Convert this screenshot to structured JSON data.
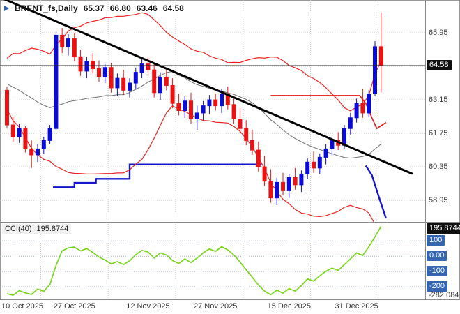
{
  "header": {
    "symbol": "BRENT_fs,Daily",
    "open": "65.37",
    "high": "66.80",
    "low": "63.46",
    "close": "64.58"
  },
  "colors": {
    "grid": "#c6c6c6",
    "axis_text": "#3b3b3b",
    "tag_black_bg": "#101010",
    "tag_text": "#ffffff",
    "border": "#8a8a8a",
    "bid_line": "#2a2a2a",
    "background": "#ffffff"
  },
  "chart_data": {
    "type": "candlestick",
    "title": "BRENT_fs,Daily",
    "symbol": "BRENT_fs",
    "timeframe": "Daily",
    "last_bar_ohlc": {
      "open": 65.37,
      "high": 66.8,
      "low": 63.46,
      "close": 64.58
    },
    "up_color": "#0b0bd8",
    "down_color": "#ea1212",
    "x_labels": [
      {
        "label": "10 Oct 2025",
        "index": 0
      },
      {
        "label": "27 Oct 2025",
        "index": 11
      },
      {
        "label": "12 Nov 2025",
        "index": 23
      },
      {
        "label": "27 Nov 2025",
        "index": 34
      },
      {
        "label": "15 Dec 2025",
        "index": 46
      },
      {
        "label": "31 Dec 2025",
        "index": 57
      }
    ],
    "vgrid_indices": [
      5.5,
      16.5,
      27.5,
      38.5,
      49.5,
      60.5
    ],
    "y_axis": {
      "price_max": 67.32,
      "price_min": 58.05,
      "ticks": [
        {
          "label": "65.95",
          "price": 65.95
        },
        {
          "label": "63.15",
          "price": 63.15
        },
        {
          "label": "61.75",
          "price": 61.75
        },
        {
          "label": "60.35",
          "price": 60.35
        },
        {
          "label": "58.95",
          "price": 58.95
        }
      ],
      "grid_prices": [
        65.95,
        64.55,
        63.15,
        61.75,
        60.35,
        58.95
      ],
      "current_price": 64.58,
      "current_price_label": "64.58"
    },
    "candles": [
      [
        63.55,
        63.7,
        61.95,
        62.1
      ],
      [
        62.1,
        62.45,
        61.4,
        61.6
      ],
      [
        61.6,
        62.15,
        61.35,
        61.95
      ],
      [
        61.95,
        62.05,
        60.95,
        61.1
      ],
      [
        61.1,
        61.45,
        60.3,
        60.85
      ],
      [
        60.85,
        61.3,
        60.55,
        61.1
      ],
      [
        61.1,
        61.6,
        60.9,
        61.45
      ],
      [
        61.45,
        62.1,
        61.3,
        61.95
      ],
      [
        61.95,
        66.0,
        61.9,
        65.85
      ],
      [
        65.85,
        66.15,
        65.1,
        65.35
      ],
      [
        65.35,
        65.9,
        65.0,
        65.7
      ],
      [
        65.7,
        65.95,
        64.75,
        64.95
      ],
      [
        64.95,
        65.25,
        64.15,
        64.35
      ],
      [
        64.35,
        64.95,
        64.05,
        64.75
      ],
      [
        64.75,
        65.1,
        64.25,
        64.45
      ],
      [
        64.45,
        64.8,
        63.9,
        64.1
      ],
      [
        64.1,
        64.65,
        63.85,
        64.5
      ],
      [
        64.5,
        64.7,
        63.45,
        63.65
      ],
      [
        63.65,
        64.25,
        63.3,
        64.05
      ],
      [
        64.05,
        64.4,
        63.35,
        63.55
      ],
      [
        63.55,
        64.05,
        63.25,
        63.85
      ],
      [
        63.85,
        64.5,
        63.6,
        64.3
      ],
      [
        64.3,
        64.85,
        64.05,
        64.65
      ],
      [
        64.65,
        64.95,
        64.2,
        64.4
      ],
      [
        64.4,
        64.7,
        63.25,
        63.45
      ],
      [
        63.45,
        64.3,
        63.15,
        64.1
      ],
      [
        64.1,
        64.4,
        63.55,
        63.75
      ],
      [
        63.75,
        64.05,
        62.8,
        63.0
      ],
      [
        63.0,
        63.4,
        62.5,
        62.7
      ],
      [
        62.7,
        63.3,
        62.4,
        63.1
      ],
      [
        63.1,
        63.45,
        62.15,
        62.35
      ],
      [
        62.35,
        62.9,
        61.9,
        62.6
      ],
      [
        62.6,
        63.1,
        62.3,
        62.9
      ],
      [
        62.9,
        63.35,
        62.55,
        63.15
      ],
      [
        63.15,
        63.4,
        62.7,
        62.9
      ],
      [
        62.9,
        63.6,
        62.6,
        63.4
      ],
      [
        63.4,
        63.7,
        62.75,
        62.95
      ],
      [
        62.95,
        63.2,
        62.15,
        62.35
      ],
      [
        62.35,
        62.8,
        61.75,
        61.95
      ],
      [
        61.95,
        62.3,
        61.25,
        61.45
      ],
      [
        61.45,
        61.9,
        60.85,
        61.05
      ],
      [
        61.05,
        61.4,
        60.15,
        60.35
      ],
      [
        60.35,
        60.8,
        59.55,
        59.75
      ],
      [
        59.75,
        60.25,
        58.85,
        59.05
      ],
      [
        59.05,
        59.9,
        58.75,
        59.7
      ],
      [
        59.7,
        60.1,
        59.15,
        59.35
      ],
      [
        59.35,
        60.05,
        59.05,
        59.9
      ],
      [
        59.9,
        60.3,
        59.4,
        59.6
      ],
      [
        59.6,
        60.2,
        59.3,
        60.05
      ],
      [
        60.05,
        60.7,
        59.85,
        60.55
      ],
      [
        60.55,
        61.0,
        60.1,
        60.3
      ],
      [
        60.3,
        60.9,
        60.05,
        60.75
      ],
      [
        60.75,
        61.3,
        60.45,
        61.1
      ],
      [
        61.1,
        61.6,
        60.8,
        61.45
      ],
      [
        61.45,
        61.8,
        61.05,
        61.25
      ],
      [
        61.25,
        62.1,
        61.1,
        61.95
      ],
      [
        61.95,
        62.6,
        61.7,
        62.4
      ],
      [
        62.4,
        63.2,
        62.2,
        63.0
      ],
      [
        63.0,
        63.6,
        62.4,
        62.6
      ],
      [
        62.6,
        63.55,
        62.45,
        63.4
      ],
      [
        63.4,
        65.6,
        63.3,
        65.37
      ],
      [
        65.37,
        66.8,
        63.46,
        64.58
      ]
    ],
    "bollinger": {
      "period": 20,
      "deviation": 2,
      "upper_color": "#e82222",
      "middle_color": "#6e6e6e",
      "lower_color": "#e82222",
      "seed_closes": [
        64.5,
        64.4,
        64.6,
        64.3,
        64.2,
        64.4,
        64.1,
        64.0,
        64.2,
        63.9,
        63.8,
        64.0,
        63.7,
        63.6,
        63.8,
        63.5,
        63.4,
        63.6,
        63.3,
        63.5
      ]
    },
    "trendline": {
      "color": "#000000",
      "width": 3,
      "from": {
        "index": -1.5,
        "price": 67.47
      },
      "to": {
        "index": 66,
        "price": 60.07
      }
    },
    "step_lines": [
      {
        "color": "#1515cc",
        "width": 2.4,
        "points": [
          [
            7.5,
            59.5
          ],
          [
            11,
            59.5
          ],
          [
            11,
            59.68
          ],
          [
            14.5,
            59.68
          ],
          [
            14.5,
            59.85
          ],
          [
            20,
            59.85
          ],
          [
            20,
            60.45
          ],
          [
            41.5,
            60.45
          ]
        ]
      },
      {
        "color": "#1515cc",
        "width": 2.4,
        "points": [
          [
            58.5,
            60.4
          ],
          [
            59.5,
            60.0
          ],
          [
            60.5,
            59.2
          ],
          [
            61.8,
            58.2
          ]
        ]
      },
      {
        "color": "#e61414",
        "width": 1.6,
        "points": [
          [
            43,
            63.33
          ],
          [
            57.5,
            63.33
          ],
          [
            58.5,
            63.0
          ],
          [
            59.5,
            62.4
          ],
          [
            60.3,
            61.95
          ],
          [
            61.8,
            62.2
          ]
        ]
      }
    ],
    "indicator": {
      "name_label": "CCI(40)",
      "value_label": "195.8744",
      "line_color": "#74d411",
      "current_value": 195.87,
      "current_tag_label": "195.8744",
      "level_tag_color": "#3565b0",
      "levels": [
        {
          "label": "100",
          "value": 100
        },
        {
          "label": "0.00",
          "value": 0
        },
        {
          "label": "-100",
          "value": -100
        },
        {
          "label": "-200",
          "value": -200
        }
      ],
      "scale_max": 220.0,
      "scale_min": -282.084,
      "scale_min_label": "-282.084",
      "values": [
        -245,
        -255,
        -225,
        -240,
        -250,
        -215,
        -230,
        -185,
        -60,
        35,
        55,
        60,
        35,
        50,
        25,
        -5,
        -25,
        -50,
        -35,
        -55,
        -30,
        10,
        38,
        28,
        -12,
        22,
        8,
        -28,
        -48,
        -18,
        -42,
        -12,
        22,
        48,
        32,
        62,
        42,
        8,
        -38,
        -88,
        -138,
        -188,
        -228,
        -252,
        -222,
        -242,
        -212,
        -228,
        -192,
        -148,
        -162,
        -128,
        -98,
        -78,
        -92,
        -55,
        -18,
        22,
        5,
        62,
        128,
        195.87
      ]
    }
  }
}
